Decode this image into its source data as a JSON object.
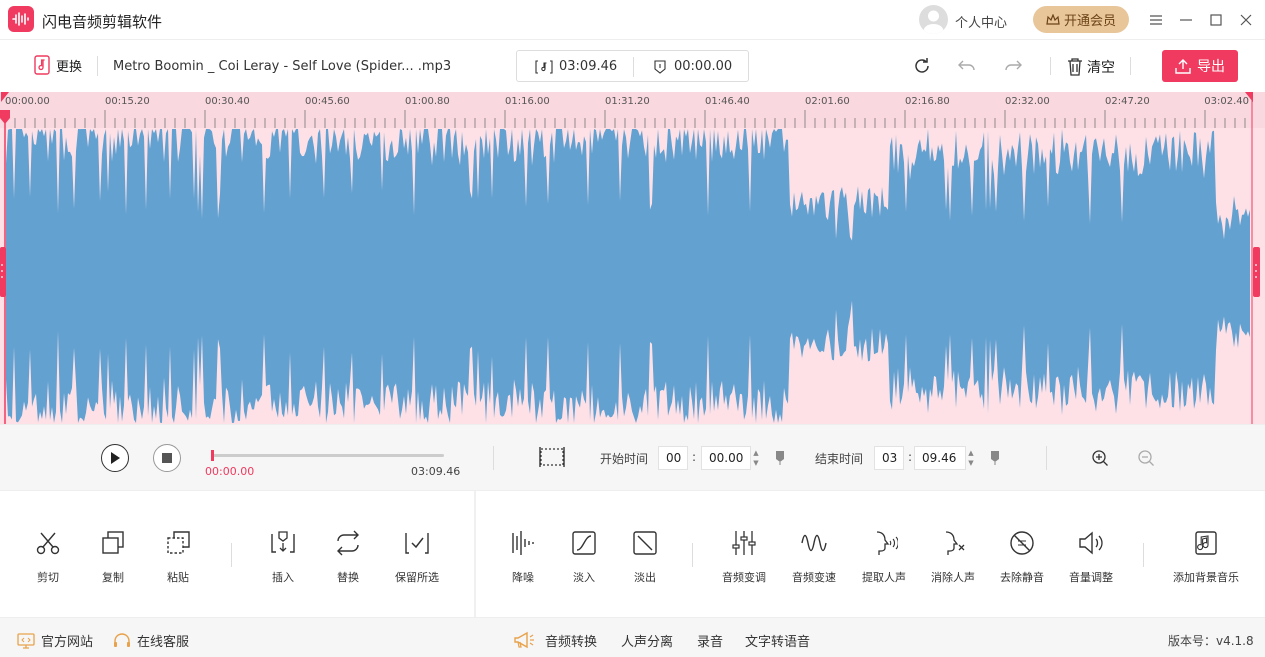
{
  "app": {
    "title": "闪电音频剪辑软件",
    "user_center": "个人中心",
    "vip": "开通会员"
  },
  "toolbar": {
    "replace": "更换",
    "filename": "Metro Boomin _ Coi Leray - Self Love (Spider... .mp3",
    "duration": "03:09.46",
    "selection_length": "00:00.00",
    "clear": "清空",
    "export": "导出"
  },
  "timeline": {
    "ticks": [
      "00:00.00",
      "00:15.20",
      "00:30.40",
      "00:45.60",
      "01:00.80",
      "01:16.00",
      "01:31.20",
      "01:46.40",
      "02:01.60",
      "02:16.80",
      "02:32.00",
      "02:47.20",
      "03:02.40"
    ]
  },
  "player": {
    "current": "00:00.00",
    "total": "03:09.46",
    "progress": 0.0,
    "start_label": "开始时间",
    "start_min": "00",
    "start_sec": "00.00",
    "end_label": "结束时间",
    "end_min": "03",
    "end_sec": "09.46"
  },
  "tools": {
    "left": [
      {
        "label": "剪切",
        "icon": "scissors-icon"
      },
      {
        "label": "复制",
        "icon": "copy-icon"
      },
      {
        "label": "粘贴",
        "icon": "paste-icon"
      },
      {
        "label": "插入",
        "icon": "insert-icon"
      },
      {
        "label": "替换",
        "icon": "replace-icon"
      },
      {
        "label": "保留所选",
        "icon": "keep-selection-icon"
      }
    ],
    "right": [
      {
        "label": "降噪",
        "icon": "denoise-icon"
      },
      {
        "label": "淡入",
        "icon": "fade-in-icon"
      },
      {
        "label": "淡出",
        "icon": "fade-out-icon"
      },
      {
        "label": "音频变调",
        "icon": "pitch-icon"
      },
      {
        "label": "音频变速",
        "icon": "speed-icon"
      },
      {
        "label": "提取人声",
        "icon": "extract-vocal-icon"
      },
      {
        "label": "消除人声",
        "icon": "remove-vocal-icon"
      },
      {
        "label": "去除静音",
        "icon": "remove-silence-icon"
      },
      {
        "label": "音量调整",
        "icon": "volume-icon"
      },
      {
        "label": "添加背景音乐",
        "icon": "bgm-icon"
      }
    ]
  },
  "footer": {
    "website": "官方网站",
    "support": "在线客服",
    "links": [
      "音频转换",
      "人声分离",
      "录音",
      "文字转语音"
    ],
    "version": "版本号：v4.1.8"
  },
  "colors": {
    "accent": "#f03a5f",
    "wave": "#63a1d1",
    "wave_bg": "#fde1e7"
  }
}
